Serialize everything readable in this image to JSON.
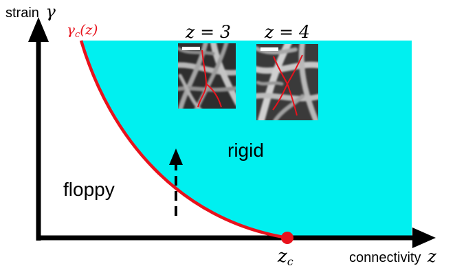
{
  "axes": {
    "y_label": "strain",
    "y_symbol": "γ",
    "x_label": "connectivity",
    "x_symbol": "z"
  },
  "curve_label": {
    "main": "γ",
    "sub": "c",
    "arg": "(z)"
  },
  "critical_point": {
    "main": "z",
    "sub": "c"
  },
  "regions": {
    "rigid": "rigid",
    "floppy": "floppy"
  },
  "micrographs": [
    {
      "label": "z = 3"
    },
    {
      "label": "z = 4"
    }
  ],
  "colors": {
    "rigid_fill": "#00f0f0",
    "curve": "#e8121c",
    "point": "#e8121c",
    "axes": "#000000"
  }
}
